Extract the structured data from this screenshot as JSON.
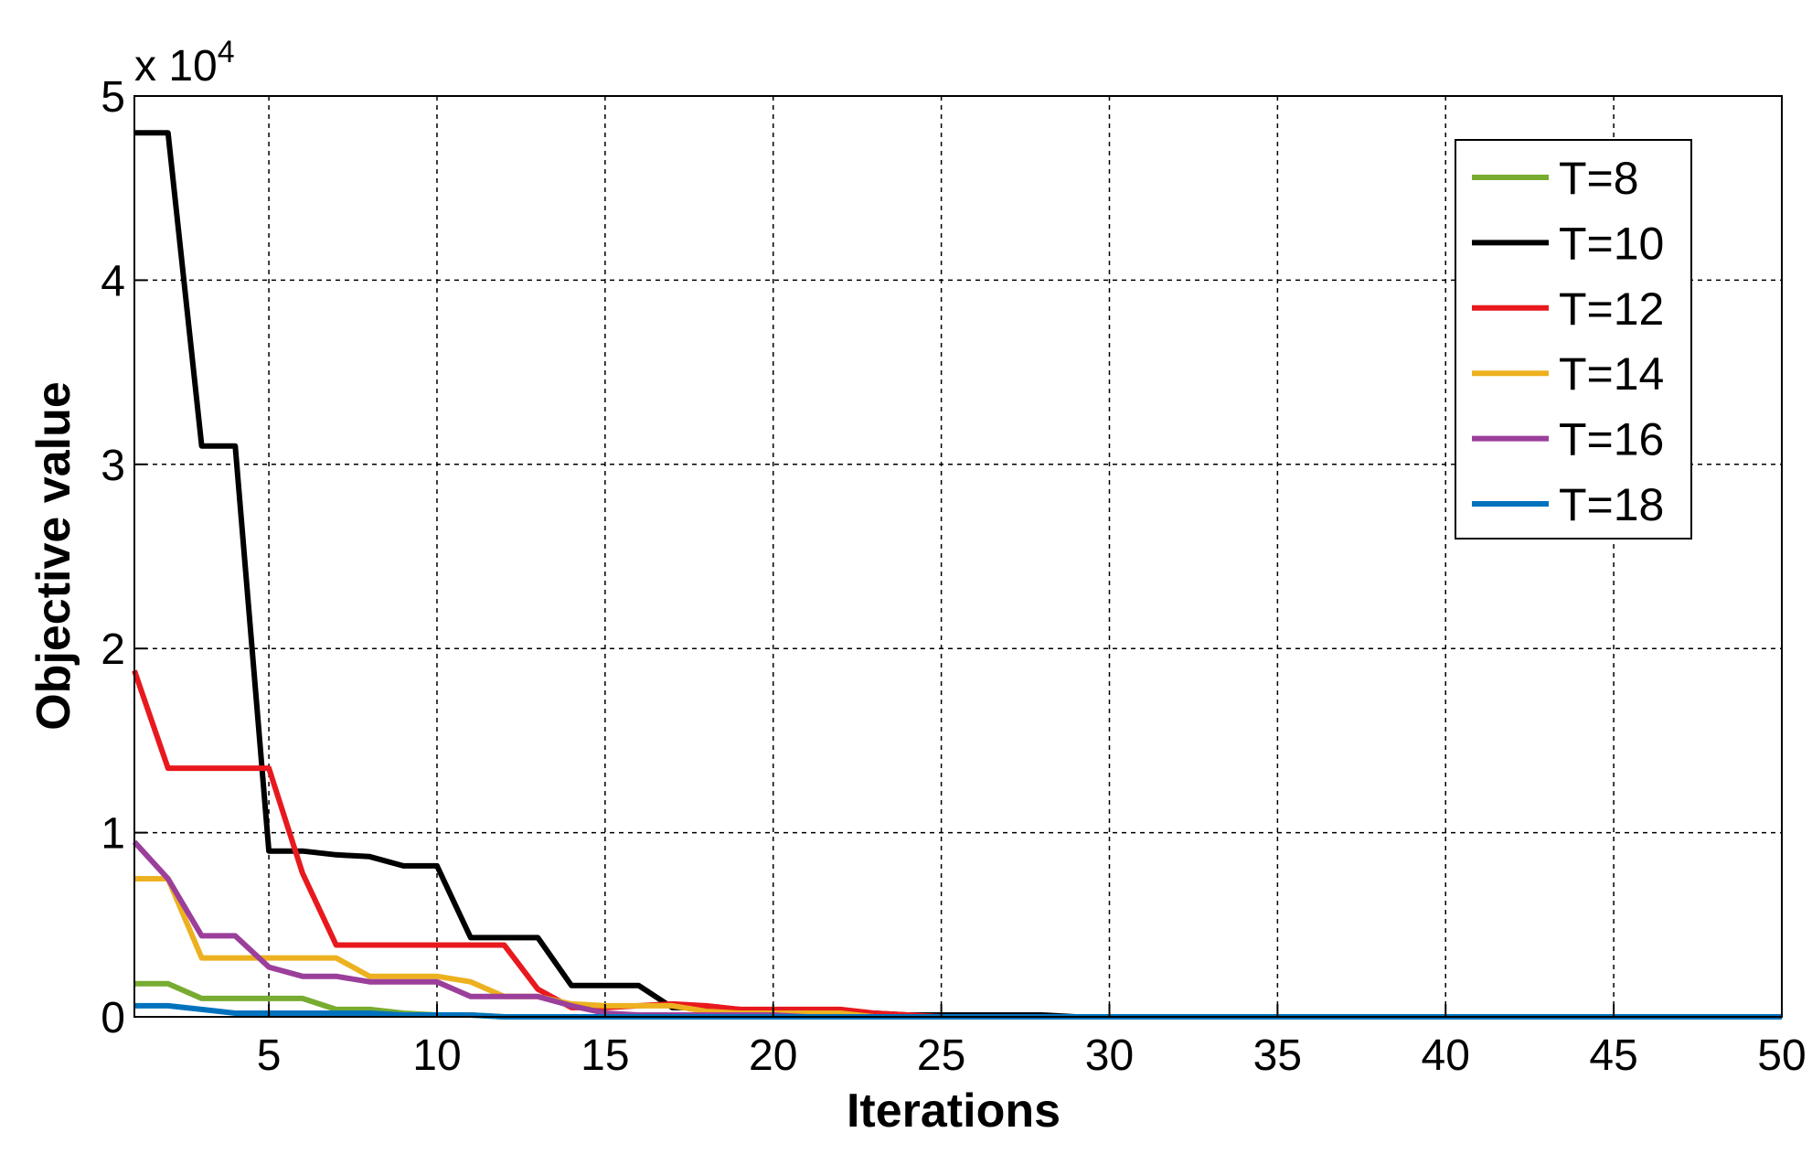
{
  "chart_data": {
    "type": "line",
    "x_label": "Iterations",
    "y_label": "Objective value",
    "y_multiplier": "x 10",
    "y_multiplier_exponent": "4",
    "x": [
      1,
      2,
      3,
      4,
      5,
      6,
      7,
      8,
      9,
      10,
      11,
      12,
      13,
      14,
      15,
      16,
      17,
      18,
      19,
      20,
      21,
      22,
      23,
      24,
      25,
      26,
      27,
      28,
      29,
      30,
      31,
      32,
      33,
      34,
      35,
      36,
      37,
      38,
      39,
      40,
      41,
      42,
      43,
      44,
      45,
      46,
      47,
      48,
      49,
      50
    ],
    "xlim": [
      1,
      50
    ],
    "xticks": [
      5,
      10,
      15,
      20,
      25,
      30,
      35,
      40,
      45,
      50
    ],
    "ylim": [
      0,
      5
    ],
    "yticks": [
      0,
      1,
      2,
      3,
      4,
      5
    ],
    "grid": true,
    "legend": "upper right",
    "series": [
      {
        "name": "T=8",
        "color": "#77ac30",
        "values": [
          0.18,
          0.18,
          0.1,
          0.1,
          0.1,
          0.1,
          0.04,
          0.04,
          0.02,
          0.01,
          0.01,
          0,
          0,
          0,
          0,
          0,
          0,
          0,
          0,
          0,
          0,
          0,
          0,
          0,
          0,
          0,
          0,
          0,
          0,
          0,
          0,
          0,
          0,
          0,
          0,
          0,
          0,
          0,
          0,
          0,
          0,
          0,
          0,
          0,
          0,
          0,
          0,
          0,
          0,
          0
        ]
      },
      {
        "name": "T=10",
        "color": "#000000",
        "values": [
          4.8,
          4.8,
          3.1,
          3.1,
          0.9,
          0.9,
          0.88,
          0.87,
          0.82,
          0.82,
          0.43,
          0.43,
          0.43,
          0.17,
          0.17,
          0.17,
          0.05,
          0.05,
          0.04,
          0.03,
          0.03,
          0.02,
          0.02,
          0.01,
          0.01,
          0.01,
          0.01,
          0.01,
          0,
          0,
          0,
          0,
          0,
          0,
          0,
          0,
          0,
          0,
          0,
          0,
          0,
          0,
          0,
          0,
          0,
          0,
          0,
          0,
          0,
          0
        ]
      },
      {
        "name": "T=12",
        "color": "#e8191e",
        "values": [
          1.88,
          1.35,
          1.35,
          1.35,
          1.35,
          0.78,
          0.39,
          0.39,
          0.39,
          0.39,
          0.39,
          0.39,
          0.15,
          0.05,
          0.05,
          0.06,
          0.07,
          0.06,
          0.04,
          0.04,
          0.04,
          0.04,
          0.02,
          0.01,
          0,
          0,
          0,
          0,
          0,
          0,
          0,
          0,
          0,
          0,
          0,
          0,
          0,
          0,
          0,
          0,
          0,
          0,
          0,
          0,
          0,
          0,
          0,
          0,
          0,
          0
        ]
      },
      {
        "name": "T=14",
        "color": "#edb120",
        "values": [
          0.75,
          0.75,
          0.32,
          0.32,
          0.32,
          0.32,
          0.32,
          0.22,
          0.22,
          0.22,
          0.19,
          0.11,
          0.11,
          0.07,
          0.06,
          0.06,
          0.06,
          0.03,
          0.02,
          0.02,
          0.02,
          0.02,
          0,
          0,
          0,
          0,
          0,
          0,
          0,
          0,
          0,
          0,
          0,
          0,
          0,
          0,
          0,
          0,
          0,
          0,
          0,
          0,
          0,
          0,
          0,
          0,
          0,
          0,
          0,
          0
        ]
      },
      {
        "name": "T=16",
        "color": "#9b3f9b",
        "values": [
          0.95,
          0.75,
          0.44,
          0.44,
          0.27,
          0.22,
          0.22,
          0.19,
          0.19,
          0.19,
          0.11,
          0.11,
          0.11,
          0.06,
          0.02,
          0.01,
          0.01,
          0.01,
          0.01,
          0.01,
          0,
          0,
          0,
          0,
          0,
          0,
          0,
          0,
          0,
          0,
          0,
          0,
          0,
          0,
          0,
          0,
          0,
          0,
          0,
          0,
          0,
          0,
          0,
          0,
          0,
          0,
          0,
          0,
          0,
          0
        ]
      },
      {
        "name": "T=18",
        "color": "#0072bd",
        "values": [
          0.06,
          0.06,
          0.04,
          0.02,
          0.02,
          0.02,
          0.02,
          0.02,
          0.01,
          0.01,
          0.01,
          0,
          0,
          0,
          0,
          0,
          0,
          0,
          0,
          0,
          0,
          0,
          0,
          0,
          0,
          0,
          0,
          0,
          0,
          0,
          0,
          0,
          0,
          0,
          0,
          0,
          0,
          0,
          0,
          0,
          0,
          0,
          0,
          0,
          0,
          0,
          0,
          0,
          0,
          0
        ]
      }
    ]
  }
}
